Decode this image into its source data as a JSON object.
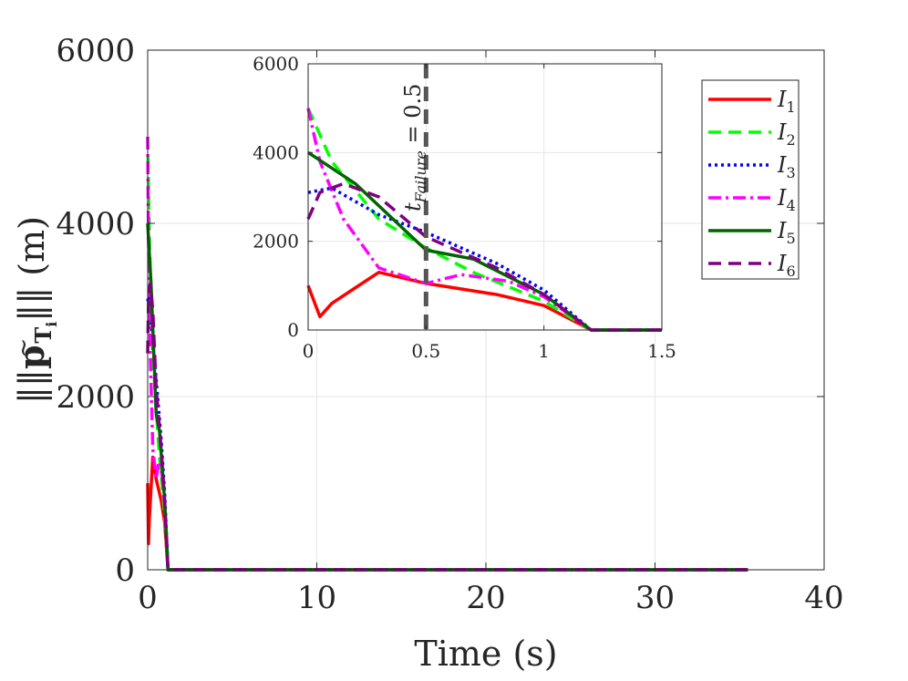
{
  "chart_data": [
    {
      "type": "line",
      "role": "main",
      "title": "",
      "xlabel": "Time (s)",
      "ylabel": "||p̃_{T_i}|| (m)",
      "ylabel_parts": {
        "open": "‖",
        "base": "p",
        "tilde": "~",
        "sub": "T",
        "subsub": "i",
        "close": "‖",
        "unit": "(m)"
      },
      "xlim": [
        0,
        40
      ],
      "ylim": [
        0,
        6000
      ],
      "xticks": [
        "0",
        "10",
        "20",
        "30",
        "40"
      ],
      "yticks": [
        "0",
        "2000",
        "4000",
        "6000"
      ],
      "grid": true,
      "series": [
        {
          "name": "I1",
          "label_base": "I",
          "label_sub": "1",
          "color": "#ff0000",
          "dash": "solid",
          "x": [
            0,
            0.05,
            0.1,
            0.3,
            0.5,
            0.8,
            1.0,
            1.2,
            35.5
          ],
          "y": [
            1000,
            300,
            600,
            1300,
            1050,
            800,
            550,
            0,
            0
          ]
        },
        {
          "name": "I2",
          "label_base": "I",
          "label_sub": "2",
          "color": "#00ff00",
          "dash": "dashed",
          "x": [
            0,
            0.1,
            0.3,
            0.5,
            0.7,
            1.0,
            1.2,
            35.5
          ],
          "y": [
            5000,
            3800,
            2500,
            1850,
            1300,
            650,
            0,
            0
          ]
        },
        {
          "name": "I3",
          "label_base": "I",
          "label_sub": "3",
          "color": "#0000ff",
          "dash": "dotted",
          "x": [
            0,
            0.1,
            0.3,
            0.5,
            0.8,
            1.0,
            1.2,
            35.5
          ],
          "y": [
            3100,
            3200,
            2600,
            2200,
            1500,
            900,
            0,
            0
          ]
        },
        {
          "name": "I4",
          "label_base": "I",
          "label_sub": "4",
          "color": "#ff00ff",
          "dash": "dashdot",
          "x": [
            0,
            0.05,
            0.15,
            0.3,
            0.5,
            0.65,
            0.85,
            1.0,
            1.2,
            35.5
          ],
          "y": [
            5000,
            3800,
            2500,
            1400,
            1050,
            1250,
            1100,
            750,
            0,
            0
          ]
        },
        {
          "name": "I5",
          "label_base": "I",
          "label_sub": "5",
          "color": "#006400",
          "dash": "solid",
          "x": [
            0,
            0.2,
            0.5,
            0.7,
            1.0,
            1.2,
            35.5
          ],
          "y": [
            4000,
            3300,
            1800,
            1600,
            800,
            0,
            0
          ]
        },
        {
          "name": "I6",
          "label_base": "I",
          "label_sub": "6",
          "color": "#800080",
          "dash": "dashed",
          "x": [
            0,
            0.05,
            0.15,
            0.3,
            0.5,
            0.8,
            1.0,
            1.2,
            35.5
          ],
          "y": [
            2500,
            3100,
            3300,
            3000,
            2100,
            1400,
            800,
            0,
            0
          ]
        }
      ],
      "legend": {
        "position": "top-right"
      }
    },
    {
      "type": "line",
      "role": "inset",
      "xlim": [
        0,
        1.5
      ],
      "ylim": [
        0,
        6000
      ],
      "xticks": [
        "0",
        "0.5",
        "1",
        "1.5"
      ],
      "yticks": [
        "0",
        "2000",
        "4000",
        "6000"
      ],
      "grid": true,
      "annotation": {
        "x": 0.5,
        "label_base": "t",
        "label_sub": "Failure",
        "label_rest": " = 0.5",
        "color": "#555555"
      }
    }
  ]
}
